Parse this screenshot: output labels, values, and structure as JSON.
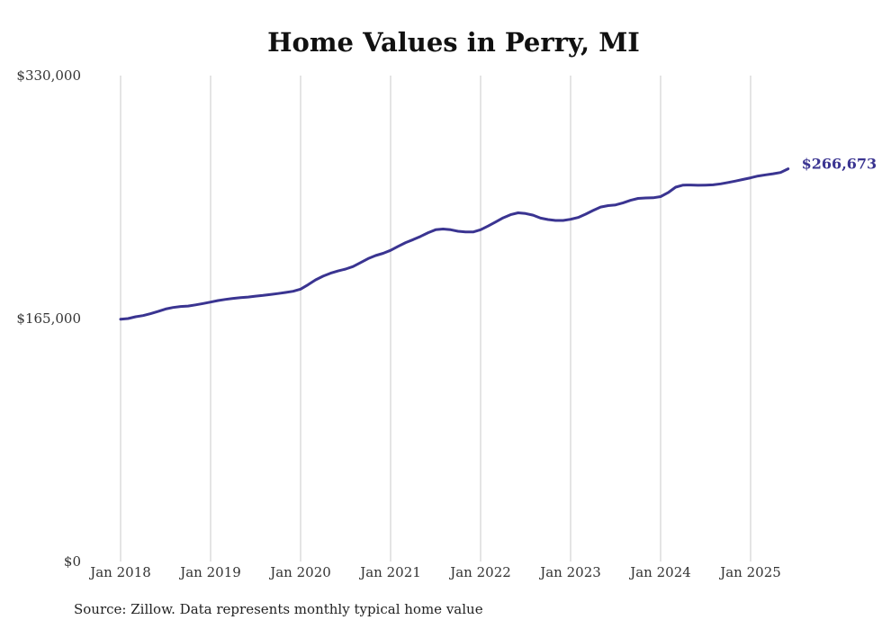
{
  "page": {
    "title": "Home Values in Perry, MI",
    "source": "Source: Zillow. Data represents monthly typical home value"
  },
  "colors": {
    "line": "#3a3491",
    "grid": "#c8c8c8",
    "text": "#333333"
  },
  "chart_data": {
    "type": "line",
    "title": "Home Values in Perry, MI",
    "xlabel": "",
    "ylabel": "",
    "ylim": [
      0,
      330000
    ],
    "y_ticks": [
      {
        "value": 0,
        "label": "$0"
      },
      {
        "value": 165000,
        "label": "$165,000"
      },
      {
        "value": 330000,
        "label": "$330,000"
      }
    ],
    "x_ticks": [
      {
        "value": "2018-01",
        "label": "Jan 2018"
      },
      {
        "value": "2019-01",
        "label": "Jan 2019"
      },
      {
        "value": "2020-01",
        "label": "Jan 2020"
      },
      {
        "value": "2021-01",
        "label": "Jan 2021"
      },
      {
        "value": "2022-01",
        "label": "Jan 2022"
      },
      {
        "value": "2023-01",
        "label": "Jan 2023"
      },
      {
        "value": "2024-01",
        "label": "Jan 2024"
      },
      {
        "value": "2025-01",
        "label": "Jan 2025"
      }
    ],
    "grid": "vertical",
    "end_label": "$266,673",
    "series": [
      {
        "x": [
          "2018-01",
          "2018-02",
          "2018-03",
          "2018-04",
          "2018-05",
          "2018-06",
          "2018-07",
          "2018-08",
          "2018-09",
          "2018-10",
          "2018-11",
          "2018-12",
          "2019-01",
          "2019-02",
          "2019-03",
          "2019-04",
          "2019-05",
          "2019-06",
          "2019-07",
          "2019-08",
          "2019-09",
          "2019-10",
          "2019-11",
          "2019-12",
          "2020-01",
          "2020-02",
          "2020-03",
          "2020-04",
          "2020-05",
          "2020-06",
          "2020-07",
          "2020-08",
          "2020-09",
          "2020-10",
          "2020-11",
          "2020-12",
          "2021-01",
          "2021-02",
          "2021-03",
          "2021-04",
          "2021-05",
          "2021-06",
          "2021-07",
          "2021-08",
          "2021-09",
          "2021-10",
          "2021-11",
          "2021-12",
          "2022-01",
          "2022-02",
          "2022-03",
          "2022-04",
          "2022-05",
          "2022-06",
          "2022-07",
          "2022-08",
          "2022-09",
          "2022-10",
          "2022-11",
          "2022-12",
          "2023-01",
          "2023-02",
          "2023-03",
          "2023-04",
          "2023-05",
          "2023-06",
          "2023-07",
          "2023-08",
          "2023-09",
          "2023-10",
          "2023-11",
          "2023-12",
          "2024-01",
          "2024-02",
          "2024-03",
          "2024-04",
          "2024-05",
          "2024-06",
          "2024-07",
          "2024-08",
          "2024-09",
          "2024-10",
          "2024-11",
          "2024-12",
          "2025-01",
          "2025-02",
          "2025-03",
          "2025-04",
          "2025-05",
          "2025-06"
        ],
        "values": [
          164600,
          165000,
          166200,
          167000,
          168300,
          169800,
          171500,
          172500,
          173200,
          173500,
          174300,
          175200,
          176200,
          177200,
          178000,
          178700,
          179200,
          179600,
          180200,
          180700,
          181300,
          182000,
          182700,
          183500,
          185000,
          188000,
          191300,
          193800,
          195800,
          197300,
          198600,
          200300,
          203000,
          205700,
          207800,
          209300,
          211300,
          214000,
          216600,
          218600,
          220800,
          223300,
          225300,
          225800,
          225300,
          224300,
          223800,
          223800,
          225300,
          227800,
          230600,
          233400,
          235500,
          236800,
          236300,
          235200,
          233200,
          232200,
          231600,
          231600,
          232400,
          233600,
          235900,
          238400,
          240700,
          241700,
          242200,
          243600,
          245300,
          246600,
          246900,
          247000,
          247800,
          250500,
          254200,
          255600,
          255700,
          255500,
          255600,
          255800,
          256500,
          257400,
          258400,
          259500,
          260600,
          261800,
          262600,
          263300,
          264200,
          266673
        ]
      }
    ]
  }
}
